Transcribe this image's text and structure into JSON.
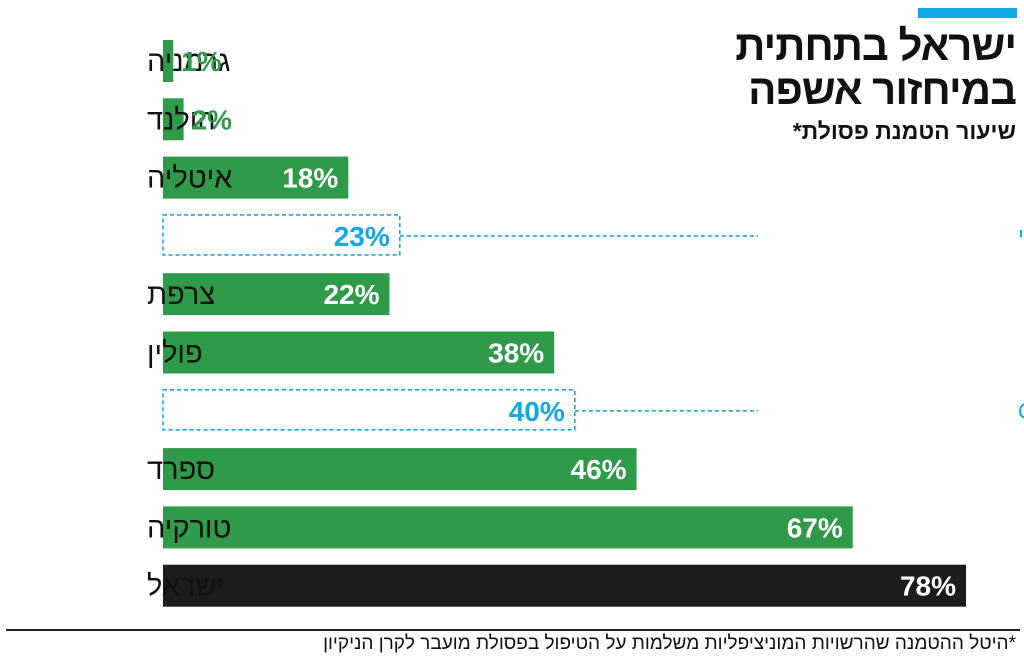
{
  "header": {
    "title_line1": "ישראל בתחתית",
    "title_line2": "במיחזור אשפה",
    "subtitle": "שיעור הטמנת פסולת*",
    "accent_color": "#12a8e8"
  },
  "footnote": "*היטל ההטמנה שהרשויות המוניציפליות משלמות על הטיפול בפסולת מועבר לקרן הניקיון",
  "colors": {
    "country_bar": "#2f9a48",
    "israel_bar": "#1c1c1c",
    "average": "#12a8e8",
    "category_text": "#111111"
  },
  "chart_data": {
    "type": "bar",
    "orientation": "horizontal",
    "title": "ישראל בתחתית במיחזור אשפה",
    "subtitle": "שיעור הטמנת פסולת*",
    "unit": "%",
    "xlim": [
      0,
      78
    ],
    "grid": false,
    "rows": [
      {
        "label": "גרמניה",
        "value": 1,
        "value_label": "1%",
        "kind": "country"
      },
      {
        "label": "הולנד",
        "value": 2,
        "value_label": "2%",
        "kind": "country"
      },
      {
        "label": "איטליה",
        "value": 18,
        "value_label": "18%",
        "kind": "country"
      },
      {
        "label": "ממוצע האיחוד האירופי",
        "value": 23,
        "value_label": "23%",
        "kind": "average"
      },
      {
        "label": "צרפת",
        "value": 22,
        "value_label": "22%",
        "kind": "country"
      },
      {
        "label": "פולין",
        "value": 38,
        "value_label": "38%",
        "kind": "country"
      },
      {
        "label": "ממוצע OECD",
        "value": 40,
        "value_label": "40%",
        "kind": "average"
      },
      {
        "label": "ספרד",
        "value": 46,
        "value_label": "46%",
        "kind": "country"
      },
      {
        "label": "טורקיה",
        "value": 67,
        "value_label": "67%",
        "kind": "country"
      },
      {
        "label": "ישראל",
        "value": 78,
        "value_label": "78%",
        "kind": "highlight"
      }
    ]
  }
}
